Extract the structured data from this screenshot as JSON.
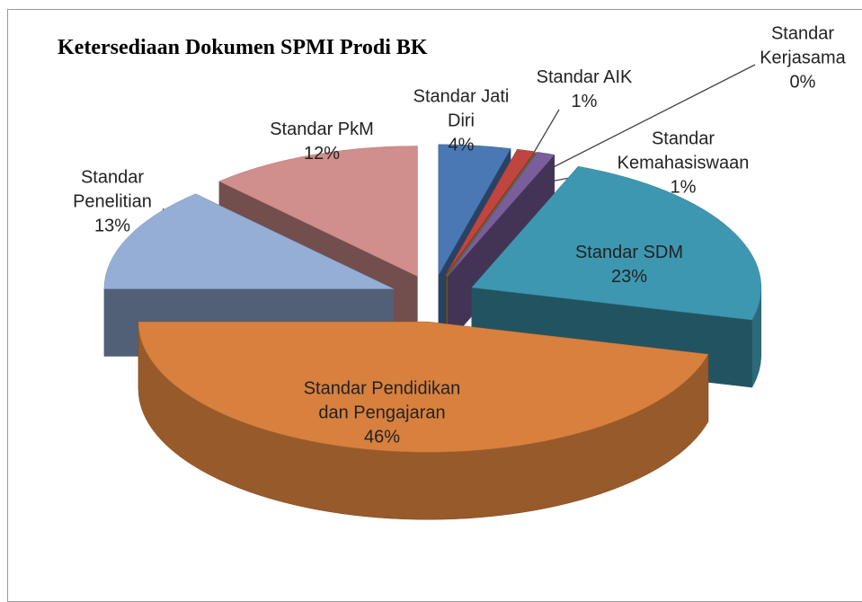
{
  "chart_data": {
    "type": "pie3d",
    "title": "Ketersediaan Dokumen SPMI Prodi BK",
    "categories": [
      "Standar Jati Diri",
      "Standar AIK",
      "Standar Kerjasama",
      "Standar Kemahasiswaan",
      "Standar SDM",
      "Standar Pendidikan dan Pengajaran",
      "Standar Penelitian",
      "Standar PkM"
    ],
    "values": [
      4,
      1,
      0,
      1,
      23,
      46,
      13,
      12
    ],
    "value_labels": [
      "4%",
      "1%",
      "0%",
      "1%",
      "23%",
      "46%",
      "13%",
      "12%"
    ],
    "colors": [
      "#4a78b5",
      "#c0443f",
      "#8fae50",
      "#7a5e9c",
      "#3e97b0",
      "#d8803e",
      "#94aed6",
      "#d08e8c"
    ],
    "legend": false
  }
}
